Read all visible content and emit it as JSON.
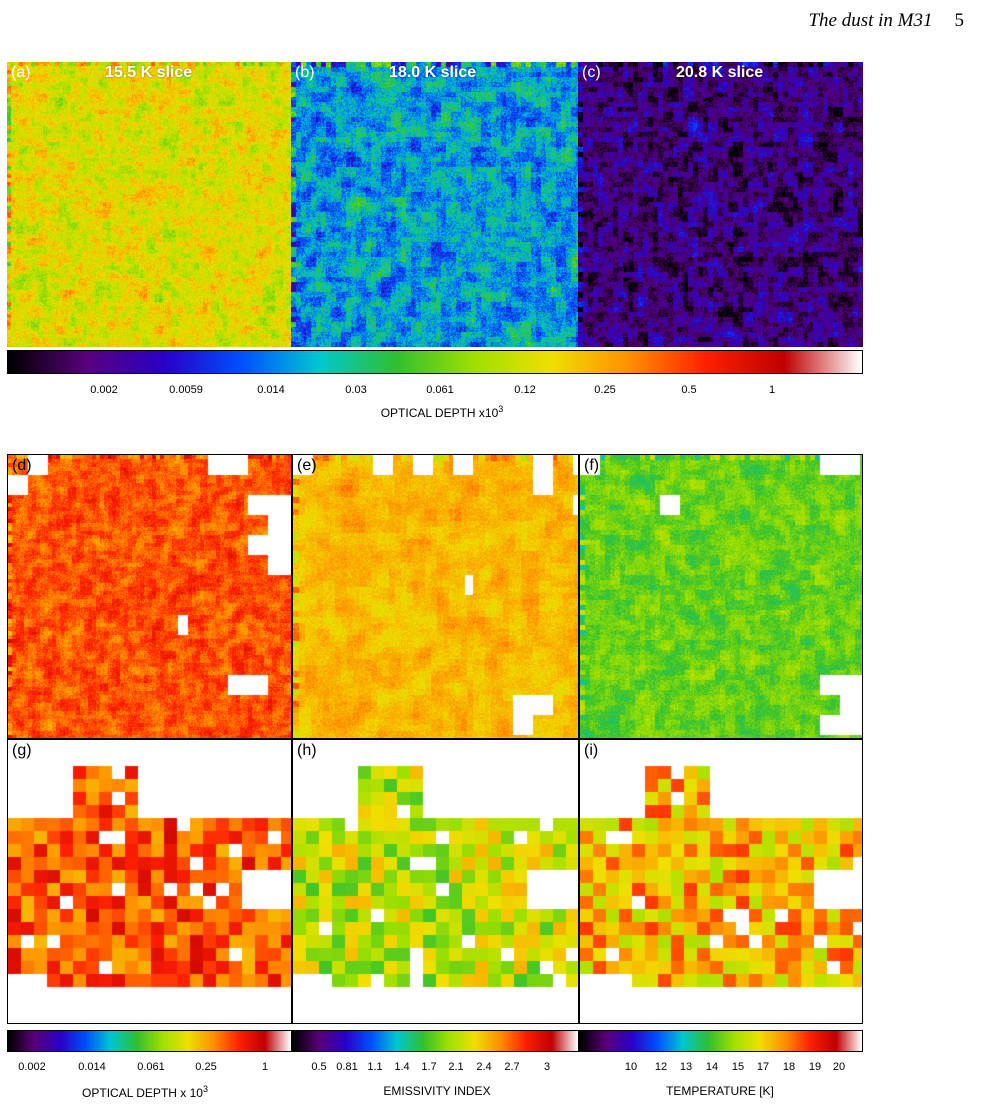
{
  "header": {
    "title": "The dust in M31",
    "page": "5"
  },
  "top_row": {
    "panels": [
      {
        "tag": "(a)",
        "slice": "15.5 K slice"
      },
      {
        "tag": "(b)",
        "slice": "18.0 K slice"
      },
      {
        "tag": "(c)",
        "slice": "20.8 K slice"
      }
    ],
    "colorbar": {
      "ticks": [
        "0.002",
        "0.0059",
        "0.014",
        "0.03",
        "0.061",
        "0.12",
        "0.25",
        "0.5",
        "1"
      ],
      "label": "OPTICAL DEPTH x10",
      "label_sup": "3"
    }
  },
  "grid": {
    "middle_tags": [
      "(d)",
      "(e)",
      "(f)"
    ],
    "bottom_tags": [
      "(g)",
      "(h)",
      "(i)"
    ],
    "colorbars": [
      {
        "ticks": [
          "0.002",
          "0.014",
          "0.061",
          "0.25",
          "1"
        ],
        "label": "OPTICAL DEPTH x 10",
        "label_sup": "3"
      },
      {
        "ticks": [
          "0.5",
          "0.81",
          "1.1",
          "1.4",
          "1.7",
          "2.1",
          "2.4",
          "2.7",
          "3"
        ],
        "label": "EMISSIVITY INDEX",
        "label_sup": ""
      },
      {
        "ticks": [
          "10",
          "12",
          "13",
          "14",
          "15",
          "17",
          "18",
          "19",
          "20"
        ],
        "label": "TEMPERATURE  [K]",
        "label_sup": ""
      }
    ]
  },
  "colors": {
    "colormap": [
      "#000000",
      "#5a007a",
      "#2a00c8",
      "#0050ff",
      "#00c8d0",
      "#30c030",
      "#a0e000",
      "#f0e000",
      "#ff9000",
      "#ff2000",
      "#c00000",
      "#ffffff"
    ]
  }
}
